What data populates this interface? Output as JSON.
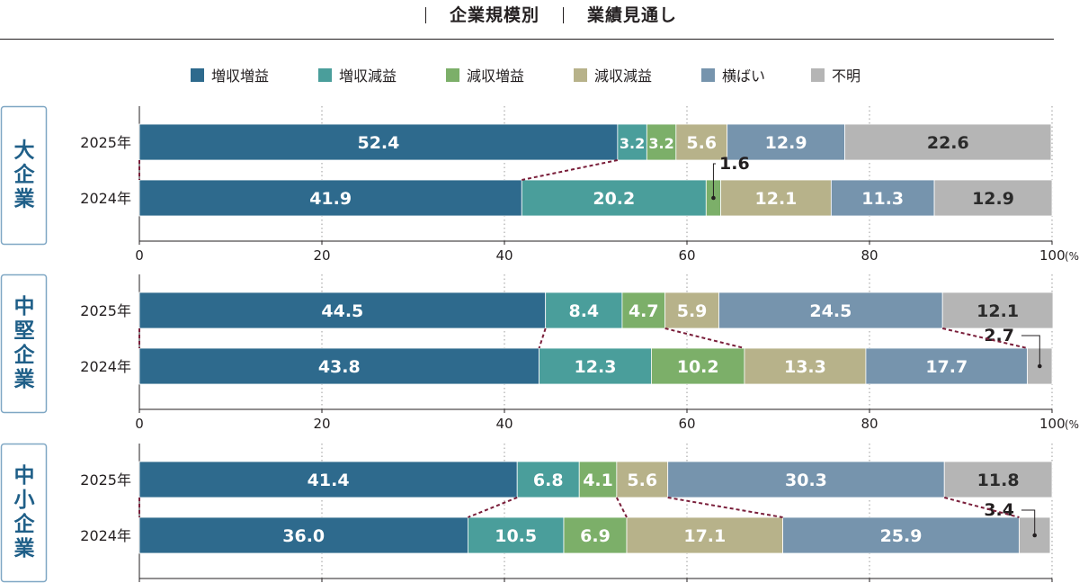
{
  "chart_data": {
    "type": "stacked-horizontal-bar",
    "title_left": "企業規模別",
    "title_right": "業績見通し",
    "axis_ticks": [
      0,
      20,
      40,
      60,
      80,
      100
    ],
    "axis_unit": "(%)",
    "xlim": [
      0,
      100
    ],
    "legend_position": "top",
    "categories": [
      {
        "key": "zo-zo",
        "name": "増収増益",
        "color": "#2e6a8d"
      },
      {
        "key": "zo-gen",
        "name": "増収減益",
        "color": "#4a9e9b"
      },
      {
        "key": "gen-zo",
        "name": "減収増益",
        "color": "#7caf69"
      },
      {
        "key": "gen-gen",
        "name": "減収減益",
        "color": "#b7b28a"
      },
      {
        "key": "yokobai",
        "name": "横ばい",
        "color": "#7694ad"
      },
      {
        "key": "fumei",
        "name": "不明",
        "color": "#b5b5b5"
      }
    ],
    "groups": [
      {
        "name": "大企業",
        "rows": [
          {
            "year": "2025年",
            "values": [
              52.4,
              3.2,
              3.2,
              5.6,
              12.9,
              22.6
            ]
          },
          {
            "year": "2024年",
            "values": [
              41.9,
              20.2,
              1.6,
              12.1,
              11.3,
              12.9
            ]
          }
        ]
      },
      {
        "name": "中堅企業",
        "rows": [
          {
            "year": "2025年",
            "values": [
              44.5,
              8.4,
              4.7,
              5.9,
              24.5,
              12.1
            ]
          },
          {
            "year": "2024年",
            "values": [
              43.8,
              12.3,
              10.2,
              13.3,
              17.7,
              2.7
            ]
          }
        ]
      },
      {
        "name": "中小企業",
        "rows": [
          {
            "year": "2025年",
            "values": [
              41.4,
              6.8,
              4.1,
              5.6,
              30.3,
              11.8
            ]
          },
          {
            "year": "2024年",
            "values": [
              36.0,
              10.5,
              6.9,
              17.1,
              25.9,
              3.4
            ]
          }
        ]
      }
    ]
  }
}
